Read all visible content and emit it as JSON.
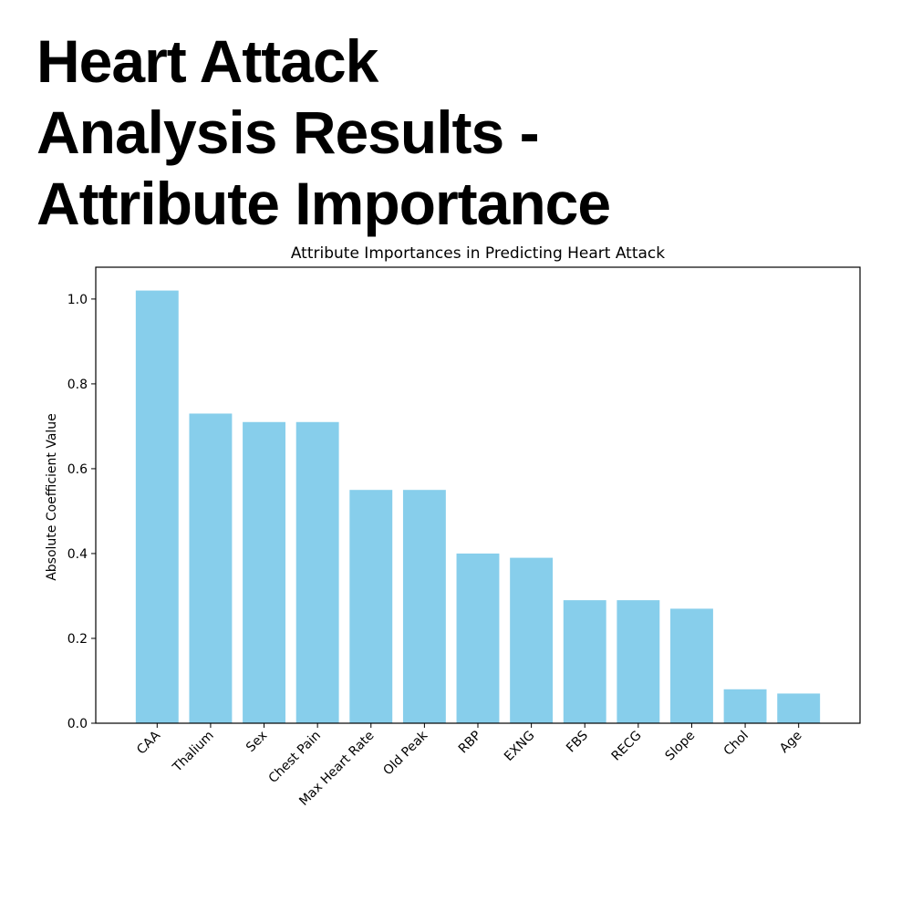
{
  "page": {
    "title_lines": [
      "Heart Attack",
      "Analysis Results -",
      "Attribute Importance"
    ]
  },
  "chart_data": {
    "type": "bar",
    "title": "Attribute Importances in Predicting Heart Attack",
    "xlabel": "",
    "ylabel": "Absolute Coefficient Value",
    "categories": [
      "CAA",
      "Thalium",
      "Sex",
      "Chest Pain",
      "Max Heart Rate",
      "Old Peak",
      "RBP",
      "EXNG",
      "FBS",
      "RECG",
      "Slope",
      "Chol",
      "Age"
    ],
    "values": [
      1.02,
      0.73,
      0.71,
      0.71,
      0.55,
      0.55,
      0.4,
      0.39,
      0.29,
      0.29,
      0.27,
      0.08,
      0.07
    ],
    "yticks": [
      "0.0",
      "0.2",
      "0.4",
      "0.6",
      "0.8",
      "1.0"
    ],
    "ylim": [
      0,
      1.075
    ],
    "bar_color": "#87ceeb",
    "grid": false,
    "legend": "none"
  }
}
